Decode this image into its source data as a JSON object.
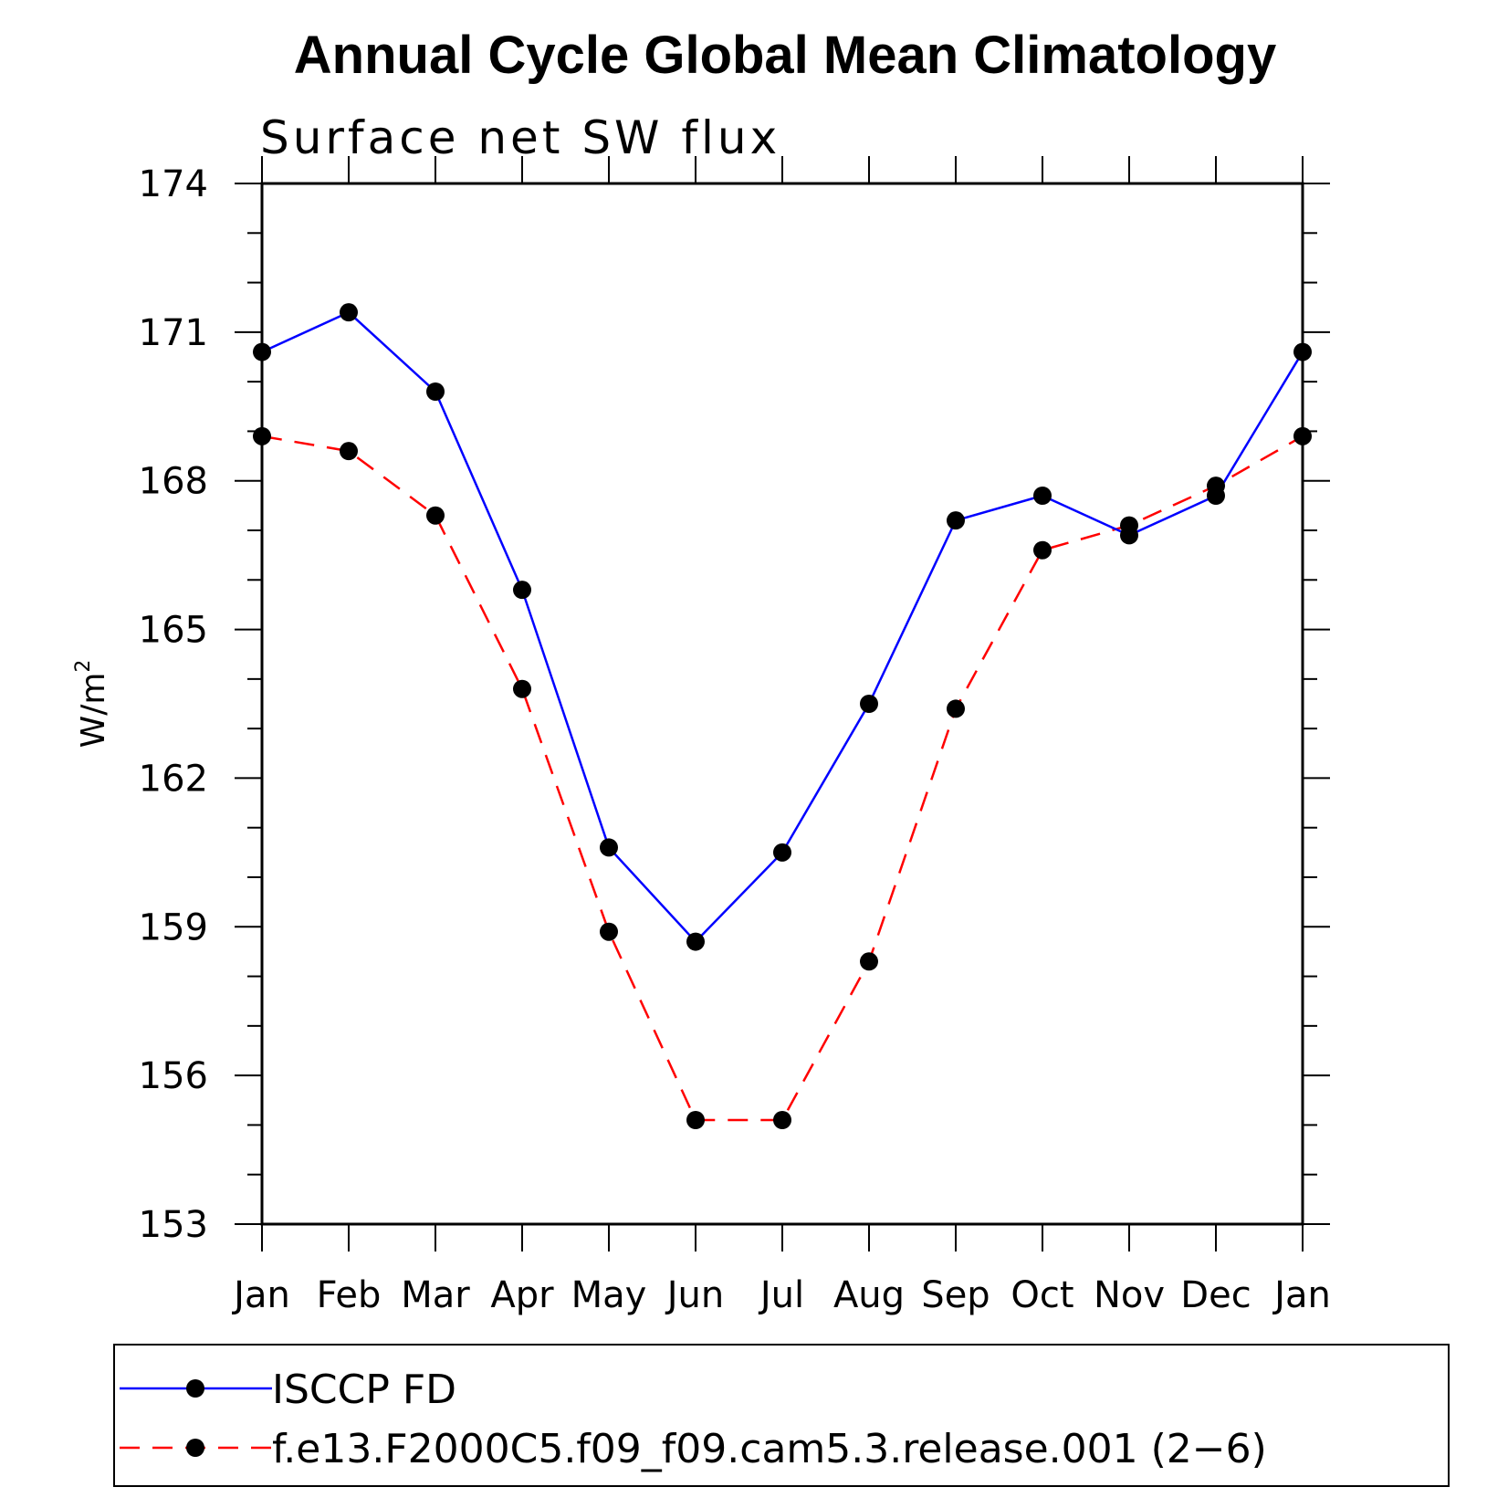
{
  "chart_data": {
    "type": "line",
    "title": "Annual Cycle Global Mean Climatology",
    "subtitle": "Surface net SW flux",
    "xlabel": "",
    "ylabel": "W/m",
    "ylabel_superscript": "2",
    "categories": [
      "Jan",
      "Feb",
      "Mar",
      "Apr",
      "May",
      "Jun",
      "Jul",
      "Aug",
      "Sep",
      "Oct",
      "Nov",
      "Dec",
      "Jan"
    ],
    "ylim": [
      153,
      174
    ],
    "yticks": [
      153,
      156,
      159,
      162,
      165,
      168,
      171,
      174
    ],
    "grid": false,
    "legend_position": "bottom",
    "series": [
      {
        "name": "ISCCP FD",
        "color": "#0000ff",
        "line_style": "solid",
        "marker": "filled-circle",
        "values": [
          170.6,
          171.4,
          169.8,
          165.8,
          160.6,
          158.7,
          160.5,
          163.5,
          167.2,
          167.7,
          166.9,
          167.7,
          170.6
        ]
      },
      {
        "name": "f.e13.F2000C5.f09_f09.cam5.3.release.001 (2−6)",
        "color": "#ff0000",
        "line_style": "dashed",
        "marker": "filled-circle",
        "values": [
          168.9,
          168.6,
          167.3,
          163.8,
          158.9,
          155.1,
          155.1,
          158.3,
          163.4,
          166.6,
          167.1,
          167.9,
          168.9
        ]
      }
    ]
  }
}
